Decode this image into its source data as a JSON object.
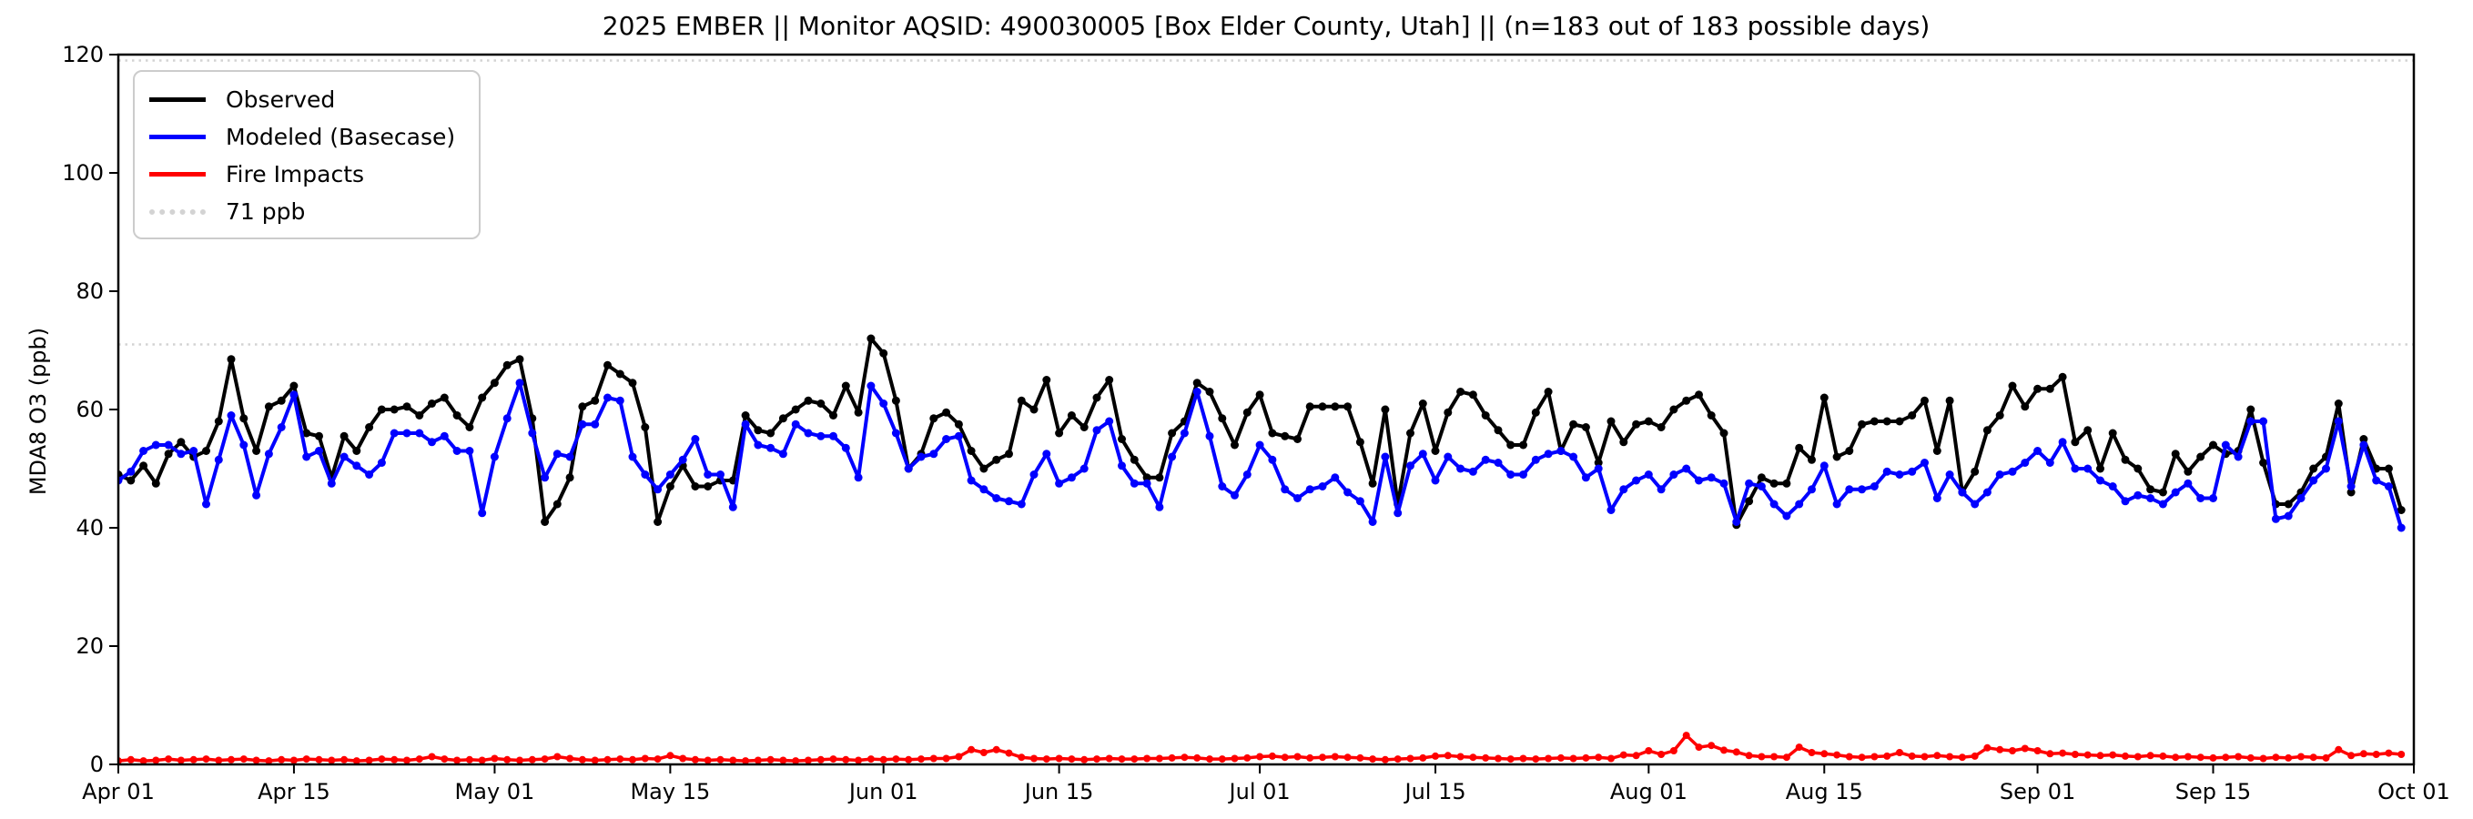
{
  "chart_data": {
    "type": "line",
    "title": "2025 EMBER || Monitor AQSID: 490030005 [Box Elder County, Utah] || (n=183 out of 183 possible days)",
    "xlabel": "",
    "ylabel": "MDA8 O3 (ppb)",
    "ylim": [
      0,
      120
    ],
    "yticks": [
      0,
      20,
      40,
      60,
      80,
      100,
      120
    ],
    "n_days": 183,
    "grid": false,
    "legend_position": "upper-left",
    "xticks": [
      {
        "day": 0,
        "label": "Apr 01"
      },
      {
        "day": 14,
        "label": "Apr 15"
      },
      {
        "day": 30,
        "label": "May 01"
      },
      {
        "day": 44,
        "label": "May 15"
      },
      {
        "day": 61,
        "label": "Jun 01"
      },
      {
        "day": 75,
        "label": "Jun 15"
      },
      {
        "day": 91,
        "label": "Jul 01"
      },
      {
        "day": 105,
        "label": "Jul 15"
      },
      {
        "day": 122,
        "label": "Aug 01"
      },
      {
        "day": 136,
        "label": "Aug 15"
      },
      {
        "day": 153,
        "label": "Sep 01"
      },
      {
        "day": 167,
        "label": "Sep 15"
      },
      {
        "day": 183,
        "label": "Oct 01"
      }
    ],
    "reference_lines": [
      {
        "label": "71 ppb",
        "value": 71,
        "color": "#d3d3d3",
        "style": "dotted"
      },
      {
        "label": "",
        "value": 119,
        "color": "#d3d3d3",
        "style": "dotted"
      }
    ],
    "series": [
      {
        "name": "Observed",
        "color": "#000000",
        "values": [
          49,
          48,
          50.5,
          47.5,
          52.5,
          54.5,
          52,
          53,
          58,
          68.5,
          58.5,
          53,
          60.5,
          61.5,
          64,
          56,
          55.5,
          48.5,
          55.5,
          53,
          57,
          60,
          60,
          60.5,
          59,
          61,
          62,
          59,
          57,
          62,
          64.5,
          67.5,
          68.5,
          58.5,
          41,
          44,
          48.5,
          60.5,
          61.5,
          67.5,
          66,
          64.5,
          57,
          41,
          47,
          50.5,
          47,
          47,
          48,
          48,
          59,
          56.5,
          56,
          58.5,
          60,
          61.5,
          61,
          59,
          64,
          59.5,
          72,
          69.5,
          61.5,
          50,
          52.5,
          58.5,
          59.5,
          57.5,
          53,
          50,
          51.5,
          52.5,
          61.5,
          60,
          65,
          56,
          59,
          57,
          62,
          65,
          55,
          51.5,
          48.5,
          48.5,
          56,
          58,
          64.5,
          63,
          58.5,
          54,
          59.5,
          62.5,
          56,
          55.5,
          55,
          60.5,
          60.5,
          60.5,
          60.5,
          54.5,
          47.5,
          60,
          44,
          56,
          61,
          53,
          59.5,
          63,
          62.5,
          59,
          56.5,
          54,
          54,
          59.5,
          63,
          53,
          57.5,
          57,
          51,
          58,
          54.5,
          57.5,
          58,
          57,
          60,
          61.5,
          62.5,
          59,
          56,
          40.5,
          44.5,
          48.5,
          47.5,
          47.5,
          53.5,
          51.5,
          62,
          52,
          53,
          57.5,
          58,
          58,
          58,
          59,
          61.5,
          53,
          61.5,
          46,
          49.5,
          56.5,
          59,
          64,
          60.5,
          63.5,
          63.5,
          65.5,
          54.5,
          56.5,
          50,
          56,
          51.5,
          50,
          46.5,
          46,
          52.5,
          49.5,
          52,
          54,
          52.5,
          53,
          60,
          51,
          44,
          44,
          46,
          50,
          52,
          61,
          46,
          55,
          50,
          50,
          43
        ]
      },
      {
        "name": "Modeled (Basecase)",
        "color": "#0000ff",
        "values": [
          48,
          49.5,
          53,
          54,
          54,
          52.5,
          53,
          44,
          51.5,
          59,
          54,
          45.5,
          52.5,
          57,
          62.5,
          52,
          53,
          47.5,
          52,
          50.5,
          49,
          51,
          56,
          56,
          56,
          54.5,
          55.5,
          53,
          53,
          42.5,
          52,
          58.5,
          64.5,
          56,
          48.5,
          52.5,
          52,
          57.5,
          57.5,
          62,
          61.5,
          52,
          49,
          46.5,
          49,
          51.5,
          55,
          49,
          49,
          43.5,
          57.5,
          54,
          53.5,
          52.5,
          57.5,
          56,
          55.5,
          55.5,
          53.5,
          48.5,
          64,
          61,
          56,
          50,
          52,
          52.5,
          55,
          55.5,
          48,
          46.5,
          45,
          44.5,
          44,
          49,
          52.5,
          47.5,
          48.5,
          50,
          56.5,
          58,
          50.5,
          47.5,
          47.5,
          43.5,
          52,
          56,
          63,
          55.5,
          47,
          45.5,
          49,
          54,
          51.5,
          46.5,
          45,
          46.5,
          47,
          48.5,
          46,
          44.5,
          41,
          52,
          42.5,
          50.5,
          52.5,
          48,
          52,
          50,
          49.5,
          51.5,
          51,
          49,
          49,
          51.5,
          52.5,
          53,
          52,
          48.5,
          50,
          43,
          46.5,
          48,
          49,
          46.5,
          49,
          50,
          48,
          48.5,
          47.5,
          41,
          47.5,
          47,
          44,
          42,
          44,
          46.5,
          50.5,
          44,
          46.5,
          46.5,
          47,
          49.5,
          49,
          49.5,
          51,
          45,
          49,
          46,
          44,
          46,
          49,
          49.5,
          51,
          53,
          51,
          54.5,
          50,
          50,
          48,
          47,
          44.5,
          45.5,
          45,
          44,
          46,
          47.5,
          45,
          45,
          54,
          52,
          58,
          58,
          41.5,
          42,
          45,
          48,
          50,
          58,
          47,
          54,
          48,
          47,
          40
        ]
      },
      {
        "name": "Fire Impacts",
        "color": "#ff0000",
        "values": [
          0.6,
          0.8,
          0.6,
          0.7,
          0.9,
          0.7,
          0.8,
          0.9,
          0.7,
          0.8,
          0.9,
          0.7,
          0.6,
          0.8,
          0.7,
          0.9,
          0.8,
          0.7,
          0.8,
          0.6,
          0.7,
          0.9,
          0.8,
          0.7,
          0.9,
          1.3,
          0.9,
          0.7,
          0.8,
          0.7,
          1.0,
          0.8,
          0.7,
          0.8,
          0.9,
          1.3,
          1.0,
          0.8,
          0.7,
          0.8,
          0.9,
          0.8,
          1.0,
          0.9,
          1.5,
          1.0,
          0.8,
          0.7,
          0.8,
          0.7,
          0.6,
          0.7,
          0.8,
          0.7,
          0.6,
          0.7,
          0.8,
          0.9,
          0.8,
          0.7,
          0.9,
          0.8,
          0.9,
          0.8,
          0.9,
          1.0,
          1.0,
          1.3,
          2.5,
          2.0,
          2.5,
          1.9,
          1.2,
          1.0,
          0.9,
          1.0,
          0.9,
          0.8,
          0.9,
          1.0,
          0.9,
          0.9,
          1.0,
          1.0,
          1.1,
          1.2,
          1.1,
          0.9,
          0.9,
          1.0,
          1.1,
          1.3,
          1.4,
          1.2,
          1.3,
          1.1,
          1.2,
          1.3,
          1.2,
          1.1,
          0.9,
          0.8,
          0.9,
          1.0,
          1.1,
          1.4,
          1.5,
          1.3,
          1.2,
          1.1,
          1.0,
          0.9,
          1.0,
          0.9,
          1.0,
          1.1,
          1.0,
          1.1,
          1.2,
          1.0,
          1.6,
          1.5,
          2.3,
          1.7,
          2.3,
          4.9,
          2.9,
          3.2,
          2.4,
          2.1,
          1.5,
          1.3,
          1.3,
          1.2,
          2.9,
          2.0,
          1.8,
          1.6,
          1.3,
          1.2,
          1.3,
          1.4,
          2.0,
          1.4,
          1.3,
          1.5,
          1.3,
          1.2,
          1.4,
          2.8,
          2.5,
          2.3,
          2.7,
          2.3,
          1.8,
          1.9,
          1.7,
          1.6,
          1.5,
          1.6,
          1.4,
          1.3,
          1.5,
          1.4,
          1.2,
          1.3,
          1.2,
          1.1,
          1.2,
          1.3,
          1.1,
          1.0,
          1.2,
          1.1,
          1.3,
          1.2,
          1.1,
          2.5,
          1.5,
          1.8,
          1.7,
          1.9,
          1.7
        ]
      }
    ]
  },
  "legend_items": [
    {
      "label": "Observed",
      "color": "#000000",
      "style": "solid"
    },
    {
      "label": "Modeled (Basecase)",
      "color": "#0000ff",
      "style": "solid"
    },
    {
      "label": "Fire Impacts",
      "color": "#ff0000",
      "style": "solid"
    },
    {
      "label": "71 ppb",
      "color": "#d3d3d3",
      "style": "dotted"
    }
  ]
}
